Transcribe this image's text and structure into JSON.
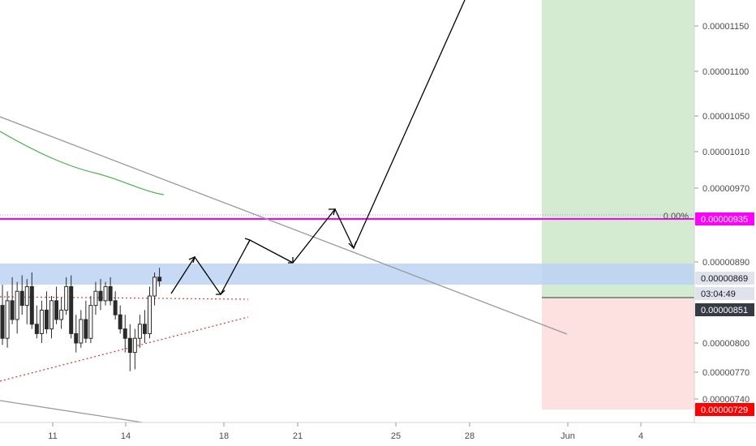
{
  "chart_data": {
    "type": "candlestick",
    "y_axis": {
      "position": "right",
      "ticks": [
        {
          "value": 1.15e-05,
          "label": "0.00001150"
        },
        {
          "value": 1.1e-05,
          "label": "0.00001100"
        },
        {
          "value": 1.05e-05,
          "label": "0.00001050"
        },
        {
          "value": 1.01e-05,
          "label": "0.00001010"
        },
        {
          "value": 9.7e-06,
          "label": "0.00000970"
        },
        {
          "value": 8.9e-06,
          "label": "0.00000890"
        },
        {
          "value": 8e-06,
          "label": "0.00000800"
        },
        {
          "value": 7.7e-06,
          "label": "0.00000770"
        },
        {
          "value": 7.4e-06,
          "label": "0.00000740"
        }
      ]
    },
    "x_axis": {
      "ticks": [
        "11",
        "14",
        "18",
        "21",
        "25",
        "28",
        "Jun",
        "4"
      ]
    },
    "price_tags": [
      {
        "label": "0.00000935",
        "bg": "#ff00ff",
        "fg": "#ffffff"
      },
      {
        "label": "0.00000869",
        "bg": "#e0e3eb",
        "fg": "#131722"
      },
      {
        "label": "03:04:49",
        "bg": "#e0e3eb",
        "fg": "#131722"
      },
      {
        "label": "0.00000851",
        "bg": "#363a45",
        "fg": "#ffffff"
      },
      {
        "label": "0.00000729",
        "bg": "#ff0000",
        "fg": "#ffffff"
      }
    ],
    "fib_label": "0.00%",
    "candles": [
      {
        "o": 8.4,
        "h": 8.62,
        "l": 7.98,
        "c": 8.05
      },
      {
        "o": 8.05,
        "h": 8.55,
        "l": 7.95,
        "c": 8.45
      },
      {
        "o": 8.45,
        "h": 8.7,
        "l": 8.2,
        "c": 8.25
      },
      {
        "o": 8.25,
        "h": 8.65,
        "l": 8.1,
        "c": 8.55
      },
      {
        "o": 8.55,
        "h": 8.72,
        "l": 8.3,
        "c": 8.4
      },
      {
        "o": 8.4,
        "h": 8.68,
        "l": 8.2,
        "c": 8.6
      },
      {
        "o": 8.6,
        "h": 8.75,
        "l": 8.15,
        "c": 8.2
      },
      {
        "o": 8.2,
        "h": 8.4,
        "l": 8.05,
        "c": 8.1
      },
      {
        "o": 8.1,
        "h": 8.45,
        "l": 8.0,
        "c": 8.35
      },
      {
        "o": 8.35,
        "h": 8.55,
        "l": 8.1,
        "c": 8.15
      },
      {
        "o": 8.15,
        "h": 8.5,
        "l": 8.05,
        "c": 8.45
      },
      {
        "o": 8.45,
        "h": 8.6,
        "l": 8.2,
        "c": 8.25
      },
      {
        "o": 8.25,
        "h": 8.48,
        "l": 8.15,
        "c": 8.35
      },
      {
        "o": 8.35,
        "h": 8.7,
        "l": 8.3,
        "c": 8.6
      },
      {
        "o": 8.6,
        "h": 8.72,
        "l": 8.05,
        "c": 8.1
      },
      {
        "o": 8.1,
        "h": 8.3,
        "l": 7.9,
        "c": 8.0
      },
      {
        "o": 8.0,
        "h": 8.35,
        "l": 7.95,
        "c": 8.25
      },
      {
        "o": 8.25,
        "h": 8.45,
        "l": 8.0,
        "c": 8.05
      },
      {
        "o": 8.05,
        "h": 8.5,
        "l": 8.0,
        "c": 8.4
      },
      {
        "o": 8.4,
        "h": 8.65,
        "l": 8.3,
        "c": 8.55
      },
      {
        "o": 8.55,
        "h": 8.68,
        "l": 8.35,
        "c": 8.45
      },
      {
        "o": 8.45,
        "h": 8.65,
        "l": 8.4,
        "c": 8.6
      },
      {
        "o": 8.6,
        "h": 8.7,
        "l": 8.4,
        "c": 8.45
      },
      {
        "o": 8.45,
        "h": 8.55,
        "l": 8.25,
        "c": 8.3
      },
      {
        "o": 8.3,
        "h": 8.4,
        "l": 8.1,
        "c": 8.15
      },
      {
        "o": 8.15,
        "h": 8.3,
        "l": 7.9,
        "c": 8.05
      },
      {
        "o": 8.05,
        "h": 8.2,
        "l": 7.7,
        "c": 7.9
      },
      {
        "o": 7.9,
        "h": 8.15,
        "l": 7.72,
        "c": 8.05
      },
      {
        "o": 8.05,
        "h": 8.3,
        "l": 7.95,
        "c": 8.2
      },
      {
        "o": 8.2,
        "h": 8.35,
        "l": 8.0,
        "c": 8.1
      },
      {
        "o": 8.1,
        "h": 8.6,
        "l": 8.05,
        "c": 8.5
      },
      {
        "o": 8.5,
        "h": 8.75,
        "l": 8.4,
        "c": 8.7
      },
      {
        "o": 8.7,
        "h": 8.8,
        "l": 8.6,
        "c": 8.66
      }
    ]
  }
}
